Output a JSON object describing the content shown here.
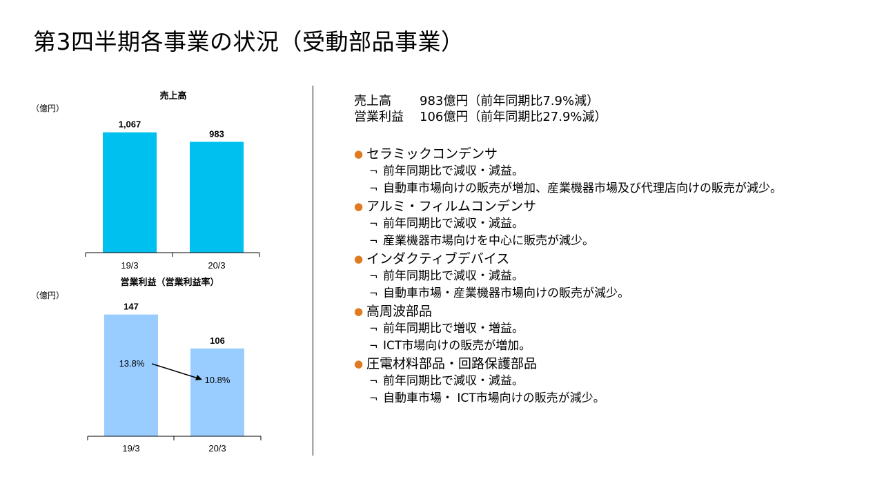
{
  "page_title": "第3四半期各事業の状況（受動部品事業）",
  "chart_data": [
    {
      "type": "bar",
      "title": "売上高",
      "unit_label": "（億円）",
      "categories": [
        "19/3",
        "20/3"
      ],
      "values": [
        1067,
        983
      ],
      "value_labels": [
        "1,067",
        "983"
      ],
      "ylim": [
        0,
        1200
      ],
      "bar_color": "#00C0F0"
    },
    {
      "type": "bar",
      "title": "営業利益（営業利益率）",
      "unit_label": "（億円）",
      "categories": [
        "19/3",
        "20/3"
      ],
      "values": [
        147,
        106
      ],
      "value_labels": [
        "147",
        "106"
      ],
      "margins": [
        "13.8%",
        "10.8%"
      ],
      "ylim": [
        0,
        170
      ],
      "bar_color": "#99CCFF"
    }
  ],
  "summary": [
    {
      "label": "売上高",
      "value": "983億円（前年同期比7.9%減）"
    },
    {
      "label": "営業利益",
      "value": "106億円（前年同期比27.9%減）"
    }
  ],
  "segments": [
    {
      "name": "セラミックコンデンサ",
      "points": [
        "前年同期比で減収・減益。",
        "自動車市場向けの販売が増加、産業機器市場及び代理店向けの販売が減少。"
      ]
    },
    {
      "name": "アルミ・フィルムコンデンサ",
      "points": [
        "前年同期比で減収・減益。",
        "産業機器市場向けを中心に販売が減少。"
      ]
    },
    {
      "name": "インダクティブデバイス",
      "points": [
        "前年同期比で減収・減益。",
        "自動車市場・産業機器市場向けの販売が減少。"
      ]
    },
    {
      "name": "高周波部品",
      "points": [
        "前年同期比で増収・増益。",
        "ICT市場向けの販売が増加。"
      ]
    },
    {
      "name": "圧電材料部品・回路保護部品",
      "points": [
        "前年同期比で減収・減益。",
        "自動車市場・ ICT市場向けの販売が減少。"
      ]
    }
  ],
  "bullet_color": "#E07A1F",
  "bullet_glyph": "●",
  "point_glyph": "¬"
}
